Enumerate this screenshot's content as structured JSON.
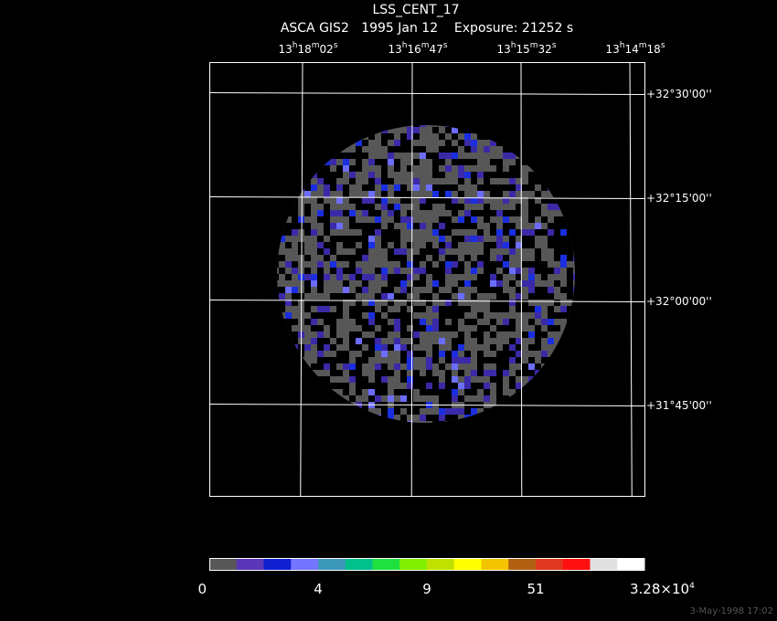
{
  "header": {
    "title": "LSS_CENT_17",
    "subtitle": "ASCA GIS2   1995 Jan 12    Exposure: 21252 s"
  },
  "ra_labels": [
    [
      {
        "text": "13"
      },
      {
        "text": "h",
        "sup": true
      },
      {
        "text": "18"
      },
      {
        "text": "m",
        "sup": true
      },
      {
        "text": "02"
      },
      {
        "text": "s",
        "sup": true
      }
    ],
    [
      {
        "text": "13"
      },
      {
        "text": "h",
        "sup": true
      },
      {
        "text": "16"
      },
      {
        "text": "m",
        "sup": true
      },
      {
        "text": "47"
      },
      {
        "text": "s",
        "sup": true
      }
    ],
    [
      {
        "text": "13"
      },
      {
        "text": "h",
        "sup": true
      },
      {
        "text": "15"
      },
      {
        "text": "m",
        "sup": true
      },
      {
        "text": "32"
      },
      {
        "text": "s",
        "sup": true
      }
    ],
    [
      {
        "text": "13"
      },
      {
        "text": "h",
        "sup": true
      },
      {
        "text": "14"
      },
      {
        "text": "m",
        "sup": true
      },
      {
        "text": "18"
      },
      {
        "text": "s",
        "sup": true
      }
    ]
  ],
  "dec_labels": [
    "+32°30'00''",
    "+32°15'00''",
    "+32°00'00''",
    "+31°45'00''"
  ],
  "colorbar": {
    "colors": [
      "#575757",
      "#5a36b8",
      "#1020d0",
      "#7474ff",
      "#3c98b8",
      "#00c08c",
      "#20e040",
      "#80f000",
      "#c0e000",
      "#ffff00",
      "#f4c400",
      "#b06010",
      "#e03820",
      "#ff1010",
      "#e0e0e0",
      "#ffffff"
    ],
    "labels": [
      [
        {
          "text": "0"
        }
      ],
      [
        {
          "text": "4"
        }
      ],
      [
        {
          "text": "9"
        }
      ],
      [
        {
          "text": "51"
        }
      ],
      [
        {
          "text": "3.28×10"
        },
        {
          "text": "4",
          "sup": true
        }
      ]
    ]
  },
  "footer": "3-May-1998 17:02"
}
